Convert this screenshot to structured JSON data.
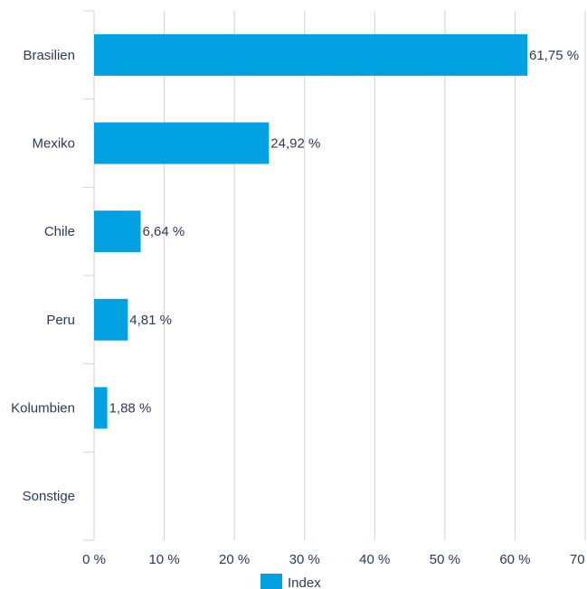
{
  "chart_data": {
    "type": "bar",
    "orientation": "horizontal",
    "categories": [
      "Brasilien",
      "Mexiko",
      "Chile",
      "Peru",
      "Kolumbien",
      "Sonstige"
    ],
    "series": [
      {
        "name": "Index",
        "values": [
          61.75,
          24.92,
          6.64,
          4.81,
          1.88,
          0
        ],
        "labels": [
          "61,75 %",
          "24,92 %",
          "6,64 %",
          "4,81 %",
          "1,88 %",
          ""
        ]
      }
    ],
    "x_ticks": [
      "0 %",
      "10 %",
      "20 %",
      "30 %",
      "40 %",
      "50 %",
      "60 %",
      "70 %"
    ],
    "xlim": [
      0,
      70
    ],
    "grid": true,
    "legend_position": "bottom-center",
    "colors": {
      "bar": "#00a0e1",
      "grid": "#c9d3e1",
      "text": "#2b3a55"
    }
  }
}
